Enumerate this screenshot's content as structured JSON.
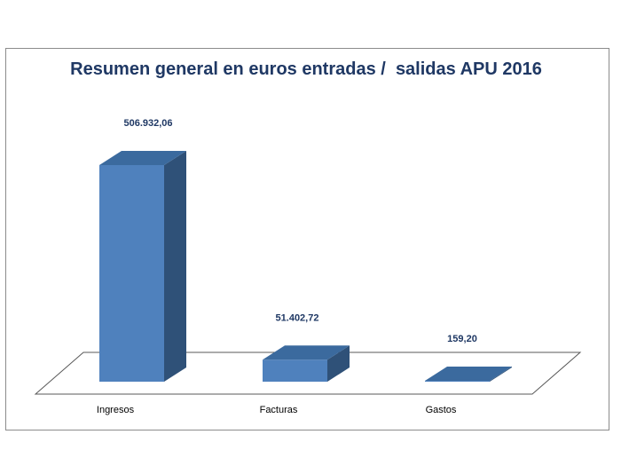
{
  "chart_data": {
    "type": "bar",
    "style": "3d-column",
    "title": "Resumen general en euros entradas /  salidas APU 2016",
    "categories": [
      "Ingresos",
      "Facturas",
      "Gastos"
    ],
    "values": [
      506932.06,
      51402.72,
      159.2
    ],
    "value_labels": [
      "506.932,06",
      "51.402,72",
      "159,20"
    ],
    "xlabel": "",
    "ylabel": "",
    "ylim": [
      0,
      506932.06
    ],
    "grid": false,
    "legend": "none",
    "colors": {
      "bar_front": "#4f81bd",
      "bar_side": "#2f5178",
      "bar_top": "#3b6a9e",
      "title": "#1f3864",
      "border": "#8c8c8c"
    }
  }
}
